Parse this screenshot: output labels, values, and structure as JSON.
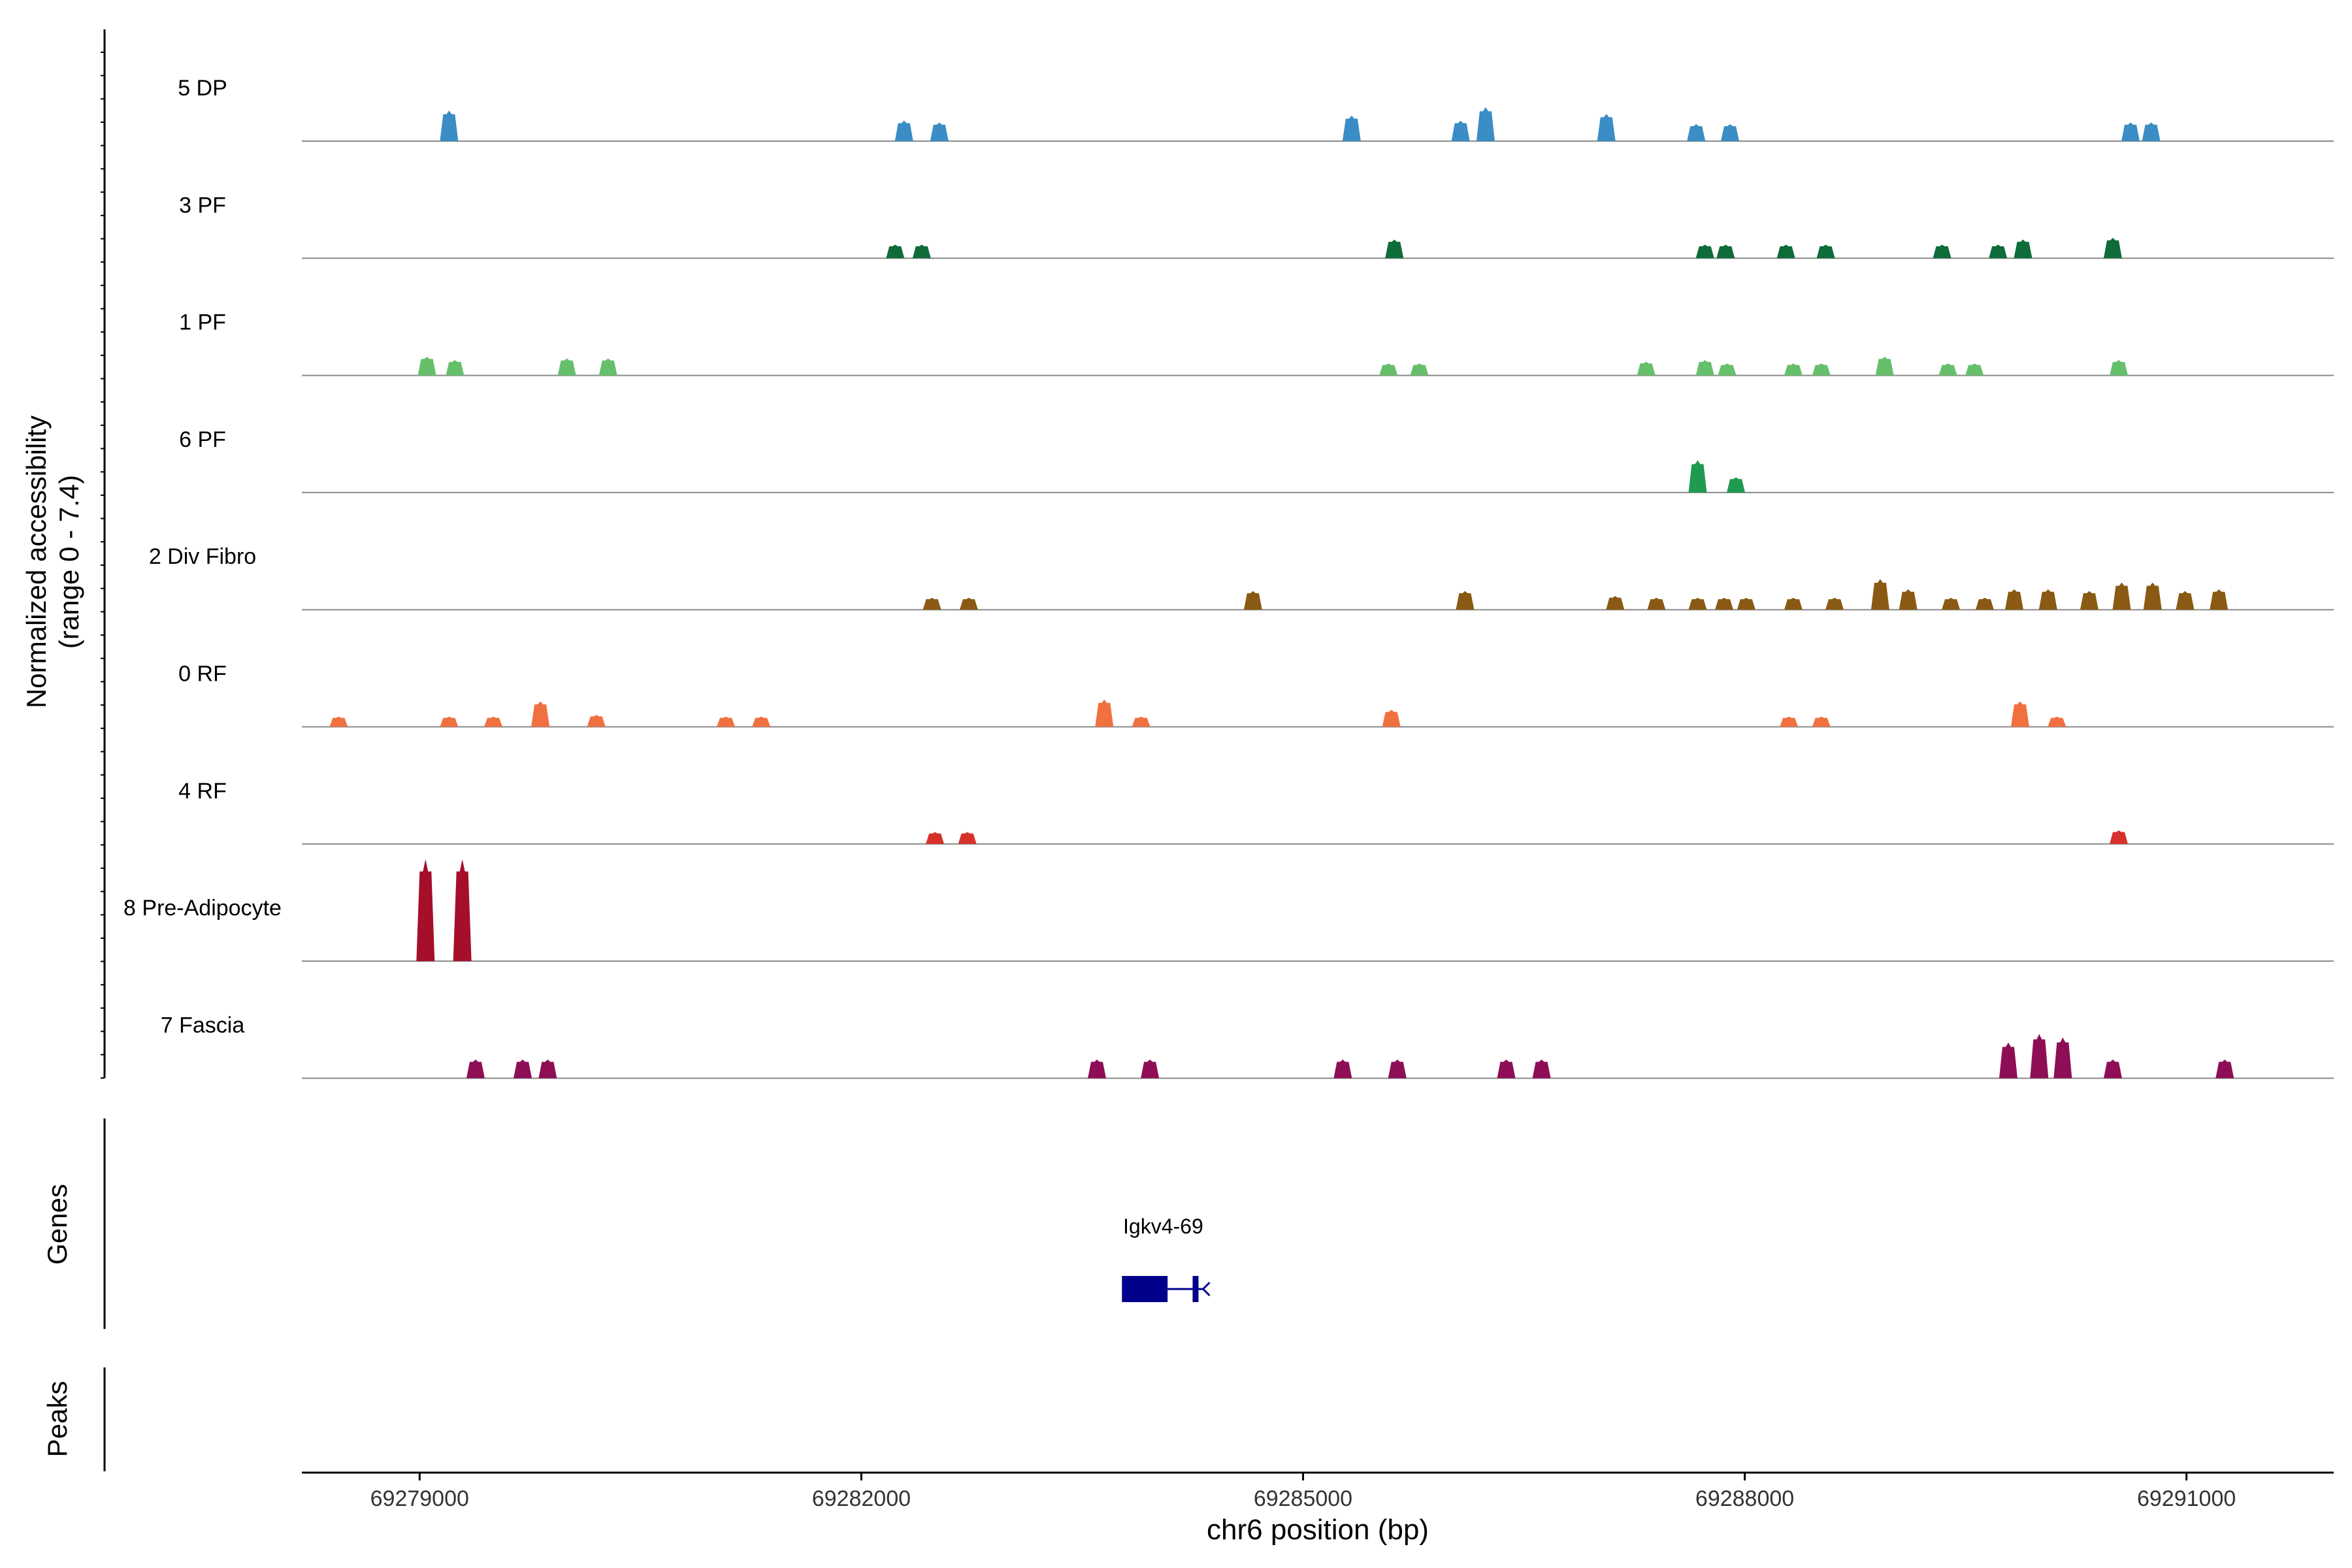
{
  "chart_data": {
    "type": "area",
    "y_axis_label_line1": "Normalized accessibility",
    "y_axis_label_line2": "(range 0 - 7.4)",
    "ylim": [
      0,
      7.4
    ],
    "x_axis_label": "chr6 position (bp)",
    "xlim": [
      69278200,
      69292000
    ],
    "x_ticks": [
      69279000,
      69282000,
      69285000,
      69288000,
      69291000
    ],
    "x_tick_labels": [
      "69279000",
      "69282000",
      "69285000",
      "69288000",
      "69291000"
    ],
    "grid": false,
    "genes_panel_label": "Genes",
    "peaks_panel_label": "Peaks",
    "genes": [
      {
        "name": "Igkv4-69",
        "strand": "-",
        "start": 69283770,
        "end": 69284330,
        "exons": [
          [
            69283770,
            69284080
          ],
          [
            69284250,
            69284290
          ]
        ]
      }
    ],
    "tracks": [
      {
        "name": "5 DP",
        "color": "#3A8DC5",
        "peaks": [
          [
            69279200,
            0.9
          ],
          [
            69282290,
            0.6
          ],
          [
            69282530,
            0.55
          ],
          [
            69285330,
            0.75
          ],
          [
            69286070,
            0.6
          ],
          [
            69286240,
            1.0
          ],
          [
            69287060,
            0.8
          ],
          [
            69287670,
            0.5
          ],
          [
            69287900,
            0.5
          ],
          [
            69290620,
            0.55
          ],
          [
            69290760,
            0.55
          ]
        ]
      },
      {
        "name": "3 PF",
        "color": "#0E6B3A",
        "peaks": [
          [
            69282230,
            0.4
          ],
          [
            69282410,
            0.4
          ],
          [
            69285620,
            0.55
          ],
          [
            69287730,
            0.4
          ],
          [
            69287870,
            0.4
          ],
          [
            69288280,
            0.4
          ],
          [
            69288550,
            0.4
          ],
          [
            69289340,
            0.4
          ],
          [
            69289720,
            0.4
          ],
          [
            69289890,
            0.55
          ],
          [
            69290500,
            0.6
          ]
        ]
      },
      {
        "name": "1 PF",
        "color": "#66BF6A",
        "peaks": [
          [
            69279050,
            0.55
          ],
          [
            69279240,
            0.45
          ],
          [
            69280000,
            0.5
          ],
          [
            69280280,
            0.5
          ],
          [
            69285580,
            0.35
          ],
          [
            69285790,
            0.35
          ],
          [
            69287330,
            0.4
          ],
          [
            69287730,
            0.45
          ],
          [
            69287880,
            0.35
          ],
          [
            69288330,
            0.35
          ],
          [
            69288520,
            0.35
          ],
          [
            69288950,
            0.55
          ],
          [
            69289380,
            0.35
          ],
          [
            69289560,
            0.35
          ],
          [
            69290540,
            0.45
          ]
        ]
      },
      {
        "name": "6 PF",
        "color": "#1F9A50",
        "peaks": [
          [
            69287680,
            0.95
          ],
          [
            69287940,
            0.45
          ]
        ]
      },
      {
        "name": "2 Div Fibro",
        "color": "#8A5A14",
        "peaks": [
          [
            69282480,
            0.35
          ],
          [
            69282730,
            0.35
          ],
          [
            69284660,
            0.55
          ],
          [
            69286100,
            0.55
          ],
          [
            69287120,
            0.4
          ],
          [
            69287400,
            0.35
          ],
          [
            69287680,
            0.35
          ],
          [
            69287860,
            0.35
          ],
          [
            69288010,
            0.35
          ],
          [
            69288330,
            0.35
          ],
          [
            69288610,
            0.35
          ],
          [
            69288920,
            0.9
          ],
          [
            69289110,
            0.6
          ],
          [
            69289400,
            0.35
          ],
          [
            69289630,
            0.35
          ],
          [
            69289830,
            0.6
          ],
          [
            69290060,
            0.6
          ],
          [
            69290340,
            0.55
          ],
          [
            69290560,
            0.8
          ],
          [
            69290770,
            0.8
          ],
          [
            69290990,
            0.55
          ],
          [
            69291220,
            0.6
          ]
        ]
      },
      {
        "name": "0 RF",
        "color": "#F07040",
        "peaks": [
          [
            69278450,
            0.3
          ],
          [
            69279200,
            0.3
          ],
          [
            69279500,
            0.3
          ],
          [
            69279820,
            0.75
          ],
          [
            69280200,
            0.35
          ],
          [
            69281080,
            0.3
          ],
          [
            69281320,
            0.3
          ],
          [
            69283650,
            0.8
          ],
          [
            69283900,
            0.3
          ],
          [
            69285600,
            0.5
          ],
          [
            69288300,
            0.3
          ],
          [
            69288520,
            0.3
          ],
          [
            69289870,
            0.75
          ],
          [
            69290120,
            0.3
          ]
        ]
      },
      {
        "name": "4 RF",
        "color": "#D7302B",
        "peaks": [
          [
            69282500,
            0.35
          ],
          [
            69282720,
            0.35
          ],
          [
            69290540,
            0.4
          ]
        ]
      },
      {
        "name": "8 Pre-Adipocyte",
        "color": "#A50F2A",
        "peaks": [
          [
            69279040,
            3.0
          ],
          [
            69279290,
            3.0
          ]
        ]
      },
      {
        "name": "7 Fascia",
        "color": "#8E0E56",
        "peaks": [
          [
            69279380,
            0.55
          ],
          [
            69279700,
            0.55
          ],
          [
            69279870,
            0.55
          ],
          [
            69283600,
            0.55
          ],
          [
            69283960,
            0.55
          ],
          [
            69285270,
            0.55
          ],
          [
            69285640,
            0.55
          ],
          [
            69286380,
            0.55
          ],
          [
            69286620,
            0.55
          ],
          [
            69289790,
            1.05
          ],
          [
            69290000,
            1.3
          ],
          [
            69290160,
            1.2
          ],
          [
            69290500,
            0.55
          ],
          [
            69291260,
            0.55
          ]
        ]
      }
    ]
  }
}
